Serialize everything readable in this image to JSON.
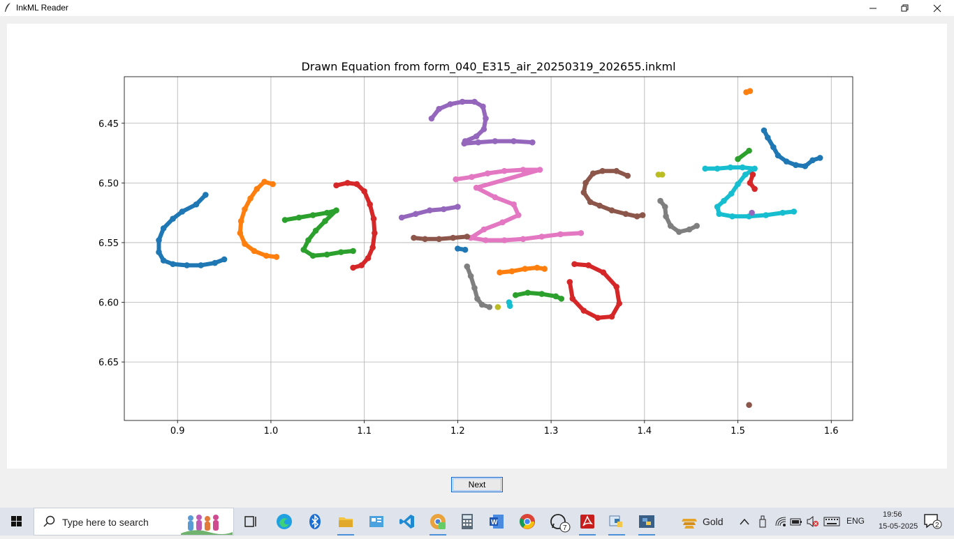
{
  "window": {
    "title": "InkML Reader",
    "buttons": {
      "minimize": "minimize",
      "maximize": "maximize",
      "close": "close"
    }
  },
  "chart_data": {
    "type": "scatter",
    "title": "Drawn Equation from form_040_E315_air_20250319_202655.inkml",
    "xlabel": "",
    "ylabel": "",
    "xlim": [
      0.843,
      1.623
    ],
    "ylim": [
      6.699,
      6.411
    ],
    "y_inverted": true,
    "grid": true,
    "xticks": [
      0.9,
      1.0,
      1.1,
      1.2,
      1.3,
      1.4,
      1.5,
      1.6
    ],
    "xtick_labels": [
      "0.9",
      "1.0",
      "1.1",
      "1.2",
      "1.3",
      "1.4",
      "1.5",
      "1.6"
    ],
    "yticks": [
      6.45,
      6.5,
      6.55,
      6.6,
      6.65
    ],
    "ytick_labels": [
      "6.45",
      "6.50",
      "6.55",
      "6.60",
      "6.65"
    ],
    "series": [
      {
        "color": "#1f77b4",
        "points": [
          [
            0.93,
            6.51
          ],
          [
            0.92,
            6.518
          ],
          [
            0.905,
            6.524
          ],
          [
            0.895,
            6.53
          ],
          [
            0.885,
            6.538
          ],
          [
            0.88,
            6.548
          ],
          [
            0.88,
            6.558
          ],
          [
            0.885,
            6.565
          ],
          [
            0.895,
            6.568
          ],
          [
            0.91,
            6.569
          ],
          [
            0.925,
            6.569
          ],
          [
            0.94,
            6.567
          ],
          [
            0.95,
            6.564
          ]
        ]
      },
      {
        "color": "#ff7f0e",
        "points": [
          [
            1.002,
            6.501
          ],
          [
            0.993,
            6.499
          ],
          [
            0.985,
            6.505
          ],
          [
            0.978,
            6.513
          ],
          [
            0.972,
            6.522
          ],
          [
            0.968,
            6.532
          ],
          [
            0.967,
            6.542
          ],
          [
            0.972,
            6.551
          ],
          [
            0.982,
            6.557
          ],
          [
            0.995,
            6.561
          ],
          [
            1.006,
            6.562
          ]
        ]
      },
      {
        "color": "#2ca02c",
        "points": [
          [
            1.015,
            6.531
          ],
          [
            1.03,
            6.529
          ],
          [
            1.045,
            6.527
          ],
          [
            1.06,
            6.525
          ],
          [
            1.07,
            6.523
          ],
          [
            1.058,
            6.532
          ],
          [
            1.048,
            6.54
          ],
          [
            1.04,
            6.548
          ],
          [
            1.035,
            6.556
          ],
          [
            1.045,
            6.561
          ],
          [
            1.06,
            6.56
          ],
          [
            1.075,
            6.558
          ],
          [
            1.088,
            6.557
          ]
        ]
      },
      {
        "color": "#d62728",
        "points": [
          [
            1.07,
            6.502
          ],
          [
            1.082,
            6.5
          ],
          [
            1.092,
            6.501
          ],
          [
            1.1,
            6.507
          ],
          [
            1.106,
            6.518
          ],
          [
            1.11,
            6.53
          ],
          [
            1.111,
            6.542
          ],
          [
            1.109,
            6.554
          ],
          [
            1.104,
            6.563
          ],
          [
            1.097,
            6.569
          ],
          [
            1.088,
            6.571
          ]
        ]
      },
      {
        "color": "#9467bd",
        "points": [
          [
            1.172,
            6.446
          ],
          [
            1.18,
            6.438
          ],
          [
            1.192,
            6.434
          ],
          [
            1.205,
            6.432
          ],
          [
            1.218,
            6.432
          ],
          [
            1.227,
            6.436
          ],
          [
            1.23,
            6.446
          ],
          [
            1.228,
            6.455
          ],
          [
            1.22,
            6.461
          ],
          [
            1.208,
            6.465
          ],
          [
            1.207,
            6.467
          ],
          [
            1.222,
            6.466
          ],
          [
            1.24,
            6.465
          ],
          [
            1.26,
            6.465
          ],
          [
            1.28,
            6.466
          ]
        ]
      },
      {
        "color": "#9467bd",
        "points": [
          [
            1.14,
            6.529
          ],
          [
            1.155,
            6.526
          ],
          [
            1.17,
            6.523
          ],
          [
            1.185,
            6.522
          ],
          [
            1.2,
            6.52
          ]
        ]
      },
      {
        "color": "#e377c2",
        "points": [
          [
            1.198,
            6.497
          ],
          [
            1.215,
            6.495
          ],
          [
            1.232,
            6.492
          ],
          [
            1.25,
            6.49
          ],
          [
            1.27,
            6.489
          ],
          [
            1.288,
            6.489
          ],
          [
            1.22,
            6.504
          ],
          [
            1.24,
            6.512
          ],
          [
            1.26,
            6.518
          ],
          [
            1.265,
            6.527
          ],
          [
            1.248,
            6.533
          ],
          [
            1.228,
            6.539
          ],
          [
            1.214,
            6.546
          ],
          [
            1.23,
            6.548
          ],
          [
            1.25,
            6.548
          ],
          [
            1.27,
            6.547
          ],
          [
            1.29,
            6.545
          ],
          [
            1.31,
            6.543
          ],
          [
            1.332,
            6.542
          ]
        ]
      },
      {
        "color": "#8c564b",
        "points": [
          [
            1.153,
            6.546
          ],
          [
            1.165,
            6.547
          ],
          [
            1.18,
            6.547
          ],
          [
            1.195,
            6.546
          ],
          [
            1.21,
            6.545
          ]
        ]
      },
      {
        "color": "#1f77b4",
        "points": [
          [
            1.2,
            6.555
          ],
          [
            1.208,
            6.556
          ]
        ]
      },
      {
        "color": "#7f7f7f",
        "points": [
          [
            1.21,
            6.57
          ],
          [
            1.214,
            6.578
          ],
          [
            1.218,
            6.588
          ],
          [
            1.221,
            6.597
          ],
          [
            1.226,
            6.602
          ],
          [
            1.234,
            6.604
          ]
        ]
      },
      {
        "color": "#bcbd22",
        "points": [
          [
            1.243,
            6.604
          ]
        ]
      },
      {
        "color": "#17becf",
        "points": [
          [
            1.255,
            6.6
          ],
          [
            1.256,
            6.603
          ]
        ]
      },
      {
        "color": "#ff7f0e",
        "points": [
          [
            1.245,
            6.575
          ],
          [
            1.258,
            6.574
          ],
          [
            1.272,
            6.572
          ],
          [
            1.285,
            6.571
          ],
          [
            1.293,
            6.572
          ]
        ]
      },
      {
        "color": "#2ca02c",
        "points": [
          [
            1.262,
            6.594
          ],
          [
            1.275,
            6.592
          ],
          [
            1.29,
            6.593
          ],
          [
            1.305,
            6.595
          ],
          [
            1.311,
            6.597
          ]
        ]
      },
      {
        "color": "#d62728",
        "points": [
          [
            1.325,
            6.568
          ],
          [
            1.34,
            6.569
          ],
          [
            1.356,
            6.575
          ],
          [
            1.37,
            6.587
          ],
          [
            1.373,
            6.601
          ],
          [
            1.365,
            6.612
          ],
          [
            1.35,
            6.613
          ],
          [
            1.335,
            6.607
          ],
          [
            1.323,
            6.597
          ],
          [
            1.32,
            6.583
          ]
        ]
      },
      {
        "color": "#8c564b",
        "points": [
          [
            1.382,
            6.494
          ],
          [
            1.37,
            6.49
          ],
          [
            1.355,
            6.49
          ],
          [
            1.345,
            6.492
          ],
          [
            1.337,
            6.5
          ],
          [
            1.335,
            6.508
          ],
          [
            1.342,
            6.516
          ],
          [
            1.352,
            6.519
          ],
          [
            1.365,
            6.523
          ],
          [
            1.38,
            6.526
          ],
          [
            1.392,
            6.528
          ],
          [
            1.398,
            6.527
          ]
        ]
      },
      {
        "color": "#bcbd22",
        "points": [
          [
            1.415,
            6.493
          ],
          [
            1.419,
            6.493
          ]
        ]
      },
      {
        "color": "#7f7f7f",
        "points": [
          [
            1.417,
            6.515
          ],
          [
            1.422,
            6.52
          ],
          [
            1.423,
            6.528
          ],
          [
            1.428,
            6.536
          ],
          [
            1.437,
            6.541
          ],
          [
            1.448,
            6.539
          ],
          [
            1.456,
            6.536
          ]
        ]
      },
      {
        "color": "#ff7f0e",
        "points": [
          [
            1.509,
            6.424
          ],
          [
            1.513,
            6.423
          ]
        ]
      },
      {
        "color": "#1f77b4",
        "points": [
          [
            1.528,
            6.456
          ],
          [
            1.532,
            6.462
          ],
          [
            1.538,
            6.47
          ],
          [
            1.543,
            6.477
          ],
          [
            1.552,
            6.482
          ],
          [
            1.562,
            6.485
          ],
          [
            1.572,
            6.486
          ],
          [
            1.58,
            6.481
          ],
          [
            1.588,
            6.479
          ]
        ]
      },
      {
        "color": "#17becf",
        "points": [
          [
            1.465,
            6.488
          ],
          [
            1.478,
            6.488
          ],
          [
            1.492,
            6.487
          ],
          [
            1.505,
            6.487
          ],
          [
            1.518,
            6.488
          ],
          [
            1.508,
            6.493
          ],
          [
            1.5,
            6.501
          ],
          [
            1.493,
            6.509
          ],
          [
            1.485,
            6.515
          ],
          [
            1.478,
            6.52
          ],
          [
            1.48,
            6.526
          ],
          [
            1.494,
            6.528
          ],
          [
            1.512,
            6.528
          ],
          [
            1.53,
            6.527
          ],
          [
            1.548,
            6.525
          ],
          [
            1.56,
            6.524
          ]
        ]
      },
      {
        "color": "#2ca02c",
        "points": [
          [
            1.5,
            6.48
          ],
          [
            1.512,
            6.473
          ]
        ]
      },
      {
        "color": "#d62728",
        "points": [
          [
            1.516,
            6.493
          ],
          [
            1.513,
            6.5
          ],
          [
            1.518,
            6.505
          ]
        ]
      },
      {
        "color": "#9467bd",
        "points": [
          [
            1.515,
            6.525
          ]
        ]
      },
      {
        "color": "#8c564b",
        "points": [
          [
            1.512,
            6.686
          ]
        ]
      }
    ]
  },
  "buttons": {
    "next_label": "Next"
  },
  "taskbar": {
    "search_placeholder": "Type here to search",
    "icons": [
      "windows-start-icon",
      "task-view-icon",
      "edge-icon",
      "bluetooth-icon",
      "file-explorer-icon",
      "control-panel-icon",
      "vscode-icon",
      "chrome-canary-icon",
      "calculator-icon",
      "word-icon",
      "chrome-icon",
      "whatsapp-icon",
      "acrobat-icon",
      "python-idle-icon",
      "python-icon"
    ],
    "whatsapp_badge": "7",
    "gold_label": "Gold",
    "language": "ENG",
    "time": "19:56",
    "date": "15-05-2025",
    "notifications": "2"
  }
}
